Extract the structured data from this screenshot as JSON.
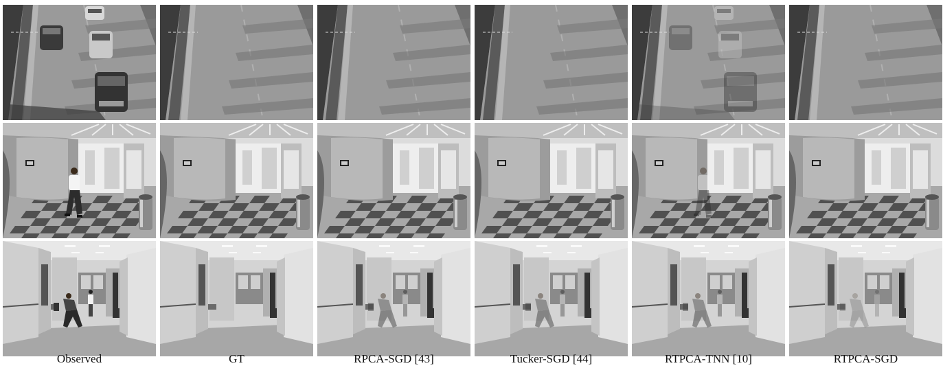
{
  "captions": [
    "Observed",
    "GT",
    "RPCA-SGD [43]",
    "Tucker-SGD [44]",
    "RTPCA-TNN [10]",
    "RTPCA-SGD"
  ],
  "rows": [
    {
      "scene": "highway",
      "foreground": [
        "full",
        "none",
        "none",
        "none",
        "ghost",
        "none"
      ]
    },
    {
      "scene": "hall",
      "foreground": [
        "full",
        "none",
        "none",
        "none",
        "ghost",
        "none"
      ]
    },
    {
      "scene": "office",
      "foreground": [
        "full",
        "none",
        "ghost",
        "ghost",
        "ghost",
        "faint"
      ]
    }
  ]
}
